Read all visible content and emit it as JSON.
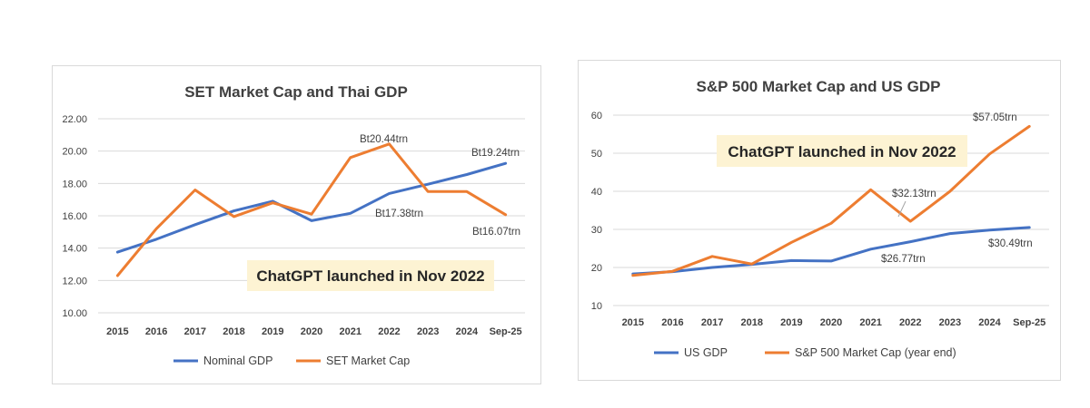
{
  "colors": {
    "gdp": "#4472c4",
    "market": "#ed7d31",
    "note_bg": "#fdf3d3"
  },
  "chart_data": [
    {
      "type": "line",
      "title": "SET Market Cap and Thai GDP",
      "categories": [
        "2015",
        "2016",
        "2017",
        "2018",
        "2019",
        "2020",
        "2021",
        "2022",
        "2023",
        "2024",
        "Sep-25"
      ],
      "ylim": [
        10,
        22
      ],
      "yticks": [
        "10.00",
        "12.00",
        "14.00",
        "16.00",
        "18.00",
        "20.00",
        "22.00"
      ],
      "legend_position": "bottom",
      "series": [
        {
          "name": "Nominal GDP",
          "color_key": "gdp",
          "values": [
            13.75,
            14.55,
            15.45,
            16.3,
            16.9,
            15.7,
            16.15,
            17.38,
            17.95,
            18.55,
            19.24
          ]
        },
        {
          "name": "SET Market Cap",
          "color_key": "market",
          "values": [
            12.3,
            15.2,
            17.6,
            15.95,
            16.8,
            16.1,
            19.6,
            20.44,
            17.5,
            17.5,
            16.07
          ]
        }
      ],
      "annotations": [
        {
          "text": "Bt20.44trn",
          "series": 1,
          "index": 7
        },
        {
          "text": "Bt19.24trn",
          "series": 0,
          "index": 10
        },
        {
          "text": "Bt17.38trn",
          "series": 0,
          "index": 7
        },
        {
          "text": "Bt16.07trn",
          "series": 1,
          "index": 10
        }
      ],
      "note": "ChatGPT launched in Nov 2022"
    },
    {
      "type": "line",
      "title": "S&P 500  Market Cap and US GDP",
      "categories": [
        "2015",
        "2016",
        "2017",
        "2018",
        "2019",
        "2020",
        "2021",
        "2022",
        "2023",
        "2024",
        "Sep-25"
      ],
      "ylim": [
        10,
        60
      ],
      "yticks": [
        "10",
        "20",
        "30",
        "40",
        "50",
        "60"
      ],
      "legend_position": "bottom",
      "series": [
        {
          "name": "US GDP",
          "color_key": "gdp",
          "values": [
            18.3,
            18.9,
            20.0,
            20.8,
            21.8,
            21.7,
            24.8,
            26.77,
            28.9,
            29.8,
            30.49
          ]
        },
        {
          "name": "S&P 500 Market Cap (year end)",
          "color_key": "market",
          "values": [
            17.9,
            19.0,
            22.9,
            20.9,
            26.6,
            31.6,
            40.4,
            32.13,
            40.0,
            49.8,
            57.05
          ]
        }
      ],
      "annotations": [
        {
          "text": "$57.05trn",
          "series": 1,
          "index": 10
        },
        {
          "text": "$32.13trn",
          "series": 1,
          "index": 7
        },
        {
          "text": "$26.77trn",
          "series": 0,
          "index": 7
        },
        {
          "text": "$30.49trn",
          "series": 0,
          "index": 10
        }
      ],
      "note": "ChatGPT launched in Nov 2022"
    }
  ]
}
